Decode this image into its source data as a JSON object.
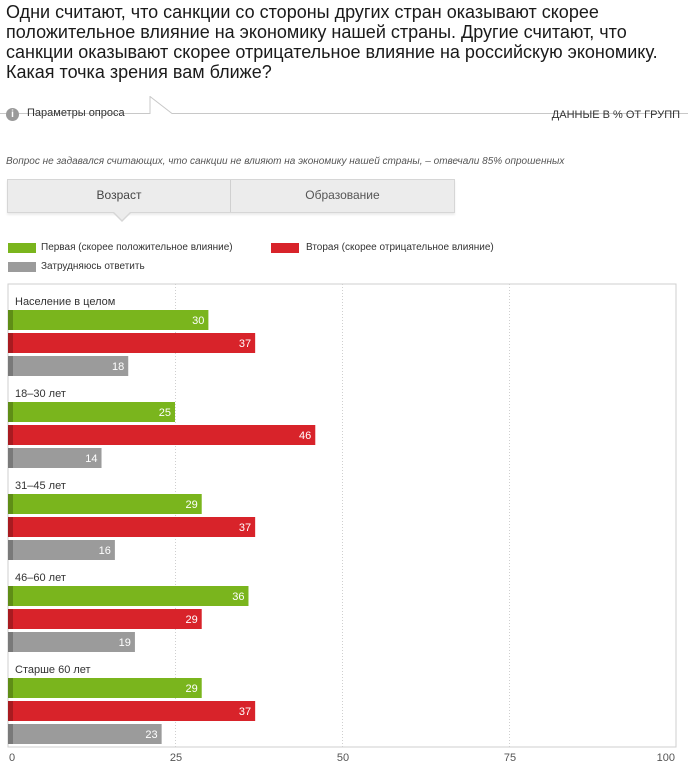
{
  "title": "Одни считают, что санкции со стороны других стран оказывают скорее положительное влияние на экономику нашей страны. Другие считают, что санкции оказывают скорее отрицательное влияние на российскую экономику. Какая точка зрения вам ближе?",
  "params": {
    "label": "Параметры опроса",
    "data_in": "ДАННЫЕ В % ОТ ГРУПП",
    "info_icon": "i"
  },
  "note": "Вопрос не задавался считающих, что санкции не влияют на экономику нашей страны, – отвечали 85% опрошенных",
  "tabs": [
    {
      "label": "Возраст",
      "active": true
    },
    {
      "label": "Образование",
      "active": false
    }
  ],
  "colors": {
    "green": "#7ab51d",
    "red": "#d8232a",
    "gray": "#9b9b9b",
    "grid": "#cfcfcf"
  },
  "chart_data": {
    "type": "bar",
    "orientation": "horizontal",
    "categories": [
      "Население в целом",
      "18–30 лет",
      "31–45 лет",
      "46–60 лет",
      "Старше 60 лет"
    ],
    "series": [
      {
        "name": "Первая (скорее положительное влияние)",
        "color": "#7ab51d",
        "values": [
          30,
          25,
          29,
          36,
          29
        ]
      },
      {
        "name": "Вторая (скорее отрицательное влияние)",
        "color": "#d8232a",
        "values": [
          37,
          46,
          37,
          29,
          37
        ]
      },
      {
        "name": "Затрудняюсь ответить",
        "color": "#9b9b9b",
        "values": [
          18,
          14,
          16,
          19,
          23
        ]
      }
    ],
    "xlim": [
      0,
      100
    ],
    "xticks": [
      0,
      25,
      50,
      75,
      100
    ],
    "grid": true,
    "legend": "top"
  }
}
